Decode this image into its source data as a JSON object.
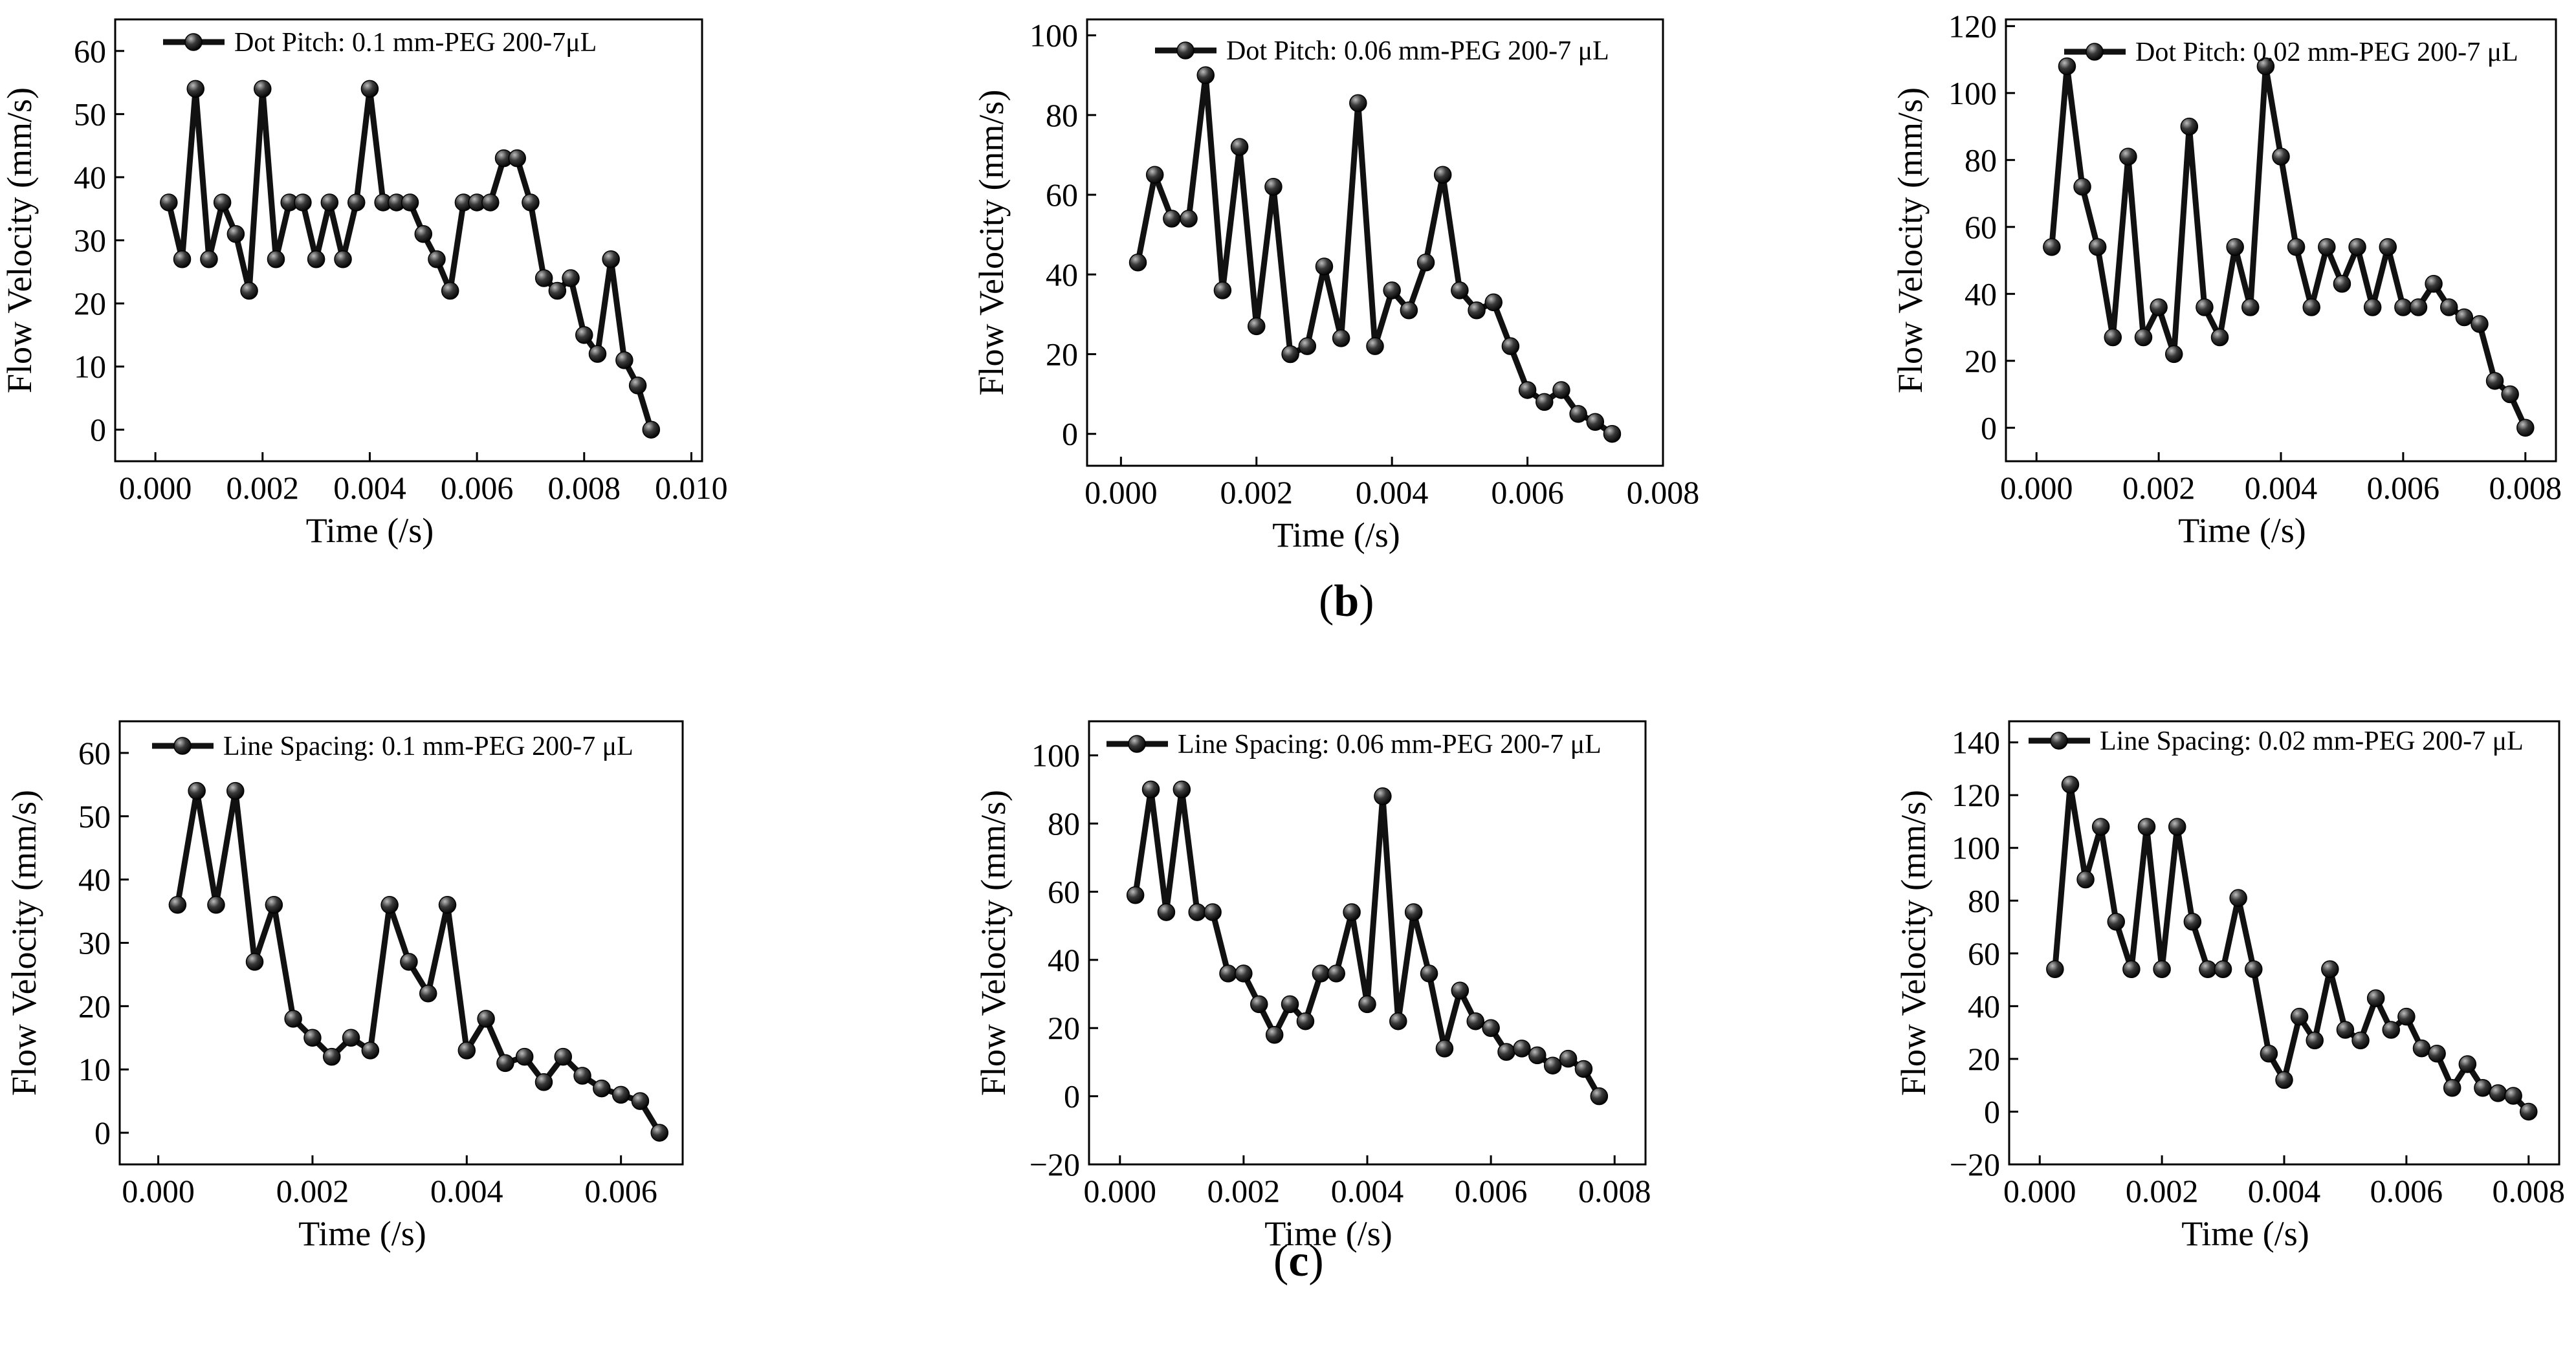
{
  "captions": {
    "b": "b",
    "c": "c"
  },
  "colors": {
    "line": "#111111",
    "marker": "#2a2a2a",
    "axis": "#000000",
    "background": "#ffffff"
  },
  "chart_data": [
    {
      "type": "line",
      "title": "",
      "xlabel": "Time (/s)",
      "ylabel": "Flow Velocity (mm/s)",
      "legend": "Dot Pitch: 0.1 mm-PEG 200-7μL",
      "legend_position": "top-left",
      "xlim": [
        -0.00075,
        0.0102
      ],
      "ylim": [
        -5,
        65
      ],
      "xticks": [
        0.0,
        0.002,
        0.004,
        0.006,
        0.008,
        0.01
      ],
      "xtick_labels": [
        "0.000",
        "0.002",
        "0.004",
        "0.006",
        "0.008",
        "0.010"
      ],
      "yticks": [
        0,
        10,
        20,
        30,
        40,
        50,
        60
      ],
      "ytick_labels": [
        "0",
        "10",
        "20",
        "30",
        "40",
        "50",
        "60"
      ],
      "x": [
        0.00025,
        0.0005,
        0.00075,
        0.001,
        0.00125,
        0.0015,
        0.00175,
        0.002,
        0.00225,
        0.0025,
        0.00275,
        0.003,
        0.00325,
        0.0035,
        0.00375,
        0.004,
        0.00425,
        0.0045,
        0.00475,
        0.005,
        0.00525,
        0.0055,
        0.00575,
        0.006,
        0.00625,
        0.0065,
        0.00675,
        0.007,
        0.00725,
        0.0075,
        0.00775,
        0.008,
        0.00825,
        0.0085,
        0.00875,
        0.009,
        0.00925
      ],
      "y": [
        36,
        27,
        54,
        27,
        36,
        31,
        22,
        54,
        27,
        36,
        36,
        27,
        36,
        27,
        36,
        54,
        36,
        36,
        36,
        31,
        27,
        22,
        36,
        36,
        36,
        43,
        43,
        36,
        24,
        22,
        24,
        15,
        12,
        27,
        11,
        7,
        0
      ]
    },
    {
      "type": "line",
      "title": "",
      "xlabel": "Time (/s)",
      "ylabel": "Flow Velocity (mm/s)",
      "legend": "Dot Pitch: 0.06 mm-PEG 200-7 μL",
      "legend_position": "top-right",
      "xlim": [
        -0.0005,
        0.008
      ],
      "ylim": [
        -8,
        104
      ],
      "xticks": [
        0.0,
        0.002,
        0.004,
        0.006,
        0.008
      ],
      "xtick_labels": [
        "0.000",
        "0.002",
        "0.004",
        "0.006",
        "0.008"
      ],
      "yticks": [
        0,
        20,
        40,
        60,
        80,
        100
      ],
      "ytick_labels": [
        "0",
        "20",
        "40",
        "60",
        "80",
        "100"
      ],
      "x": [
        0.00025,
        0.0005,
        0.00075,
        0.001,
        0.00125,
        0.0015,
        0.00175,
        0.002,
        0.00225,
        0.0025,
        0.00275,
        0.003,
        0.00325,
        0.0035,
        0.00375,
        0.004,
        0.00425,
        0.0045,
        0.00475,
        0.005,
        0.00525,
        0.0055,
        0.00575,
        0.006,
        0.00625,
        0.0065,
        0.00675,
        0.007,
        0.00725
      ],
      "y": [
        43,
        65,
        54,
        54,
        90,
        36,
        72,
        27,
        62,
        20,
        22,
        42,
        24,
        83,
        22,
        36,
        31,
        43,
        65,
        36,
        31,
        33,
        22,
        11,
        8,
        11,
        5,
        3,
        0
      ]
    },
    {
      "type": "line",
      "title": "",
      "xlabel": "Time (/s)",
      "ylabel": "Flow Velocity (mm/s)",
      "legend": "Dot Pitch:  0.02 mm-PEG 200-7 μL",
      "legend_position": "top-right",
      "xlim": [
        -0.0005,
        0.0085
      ],
      "ylim": [
        -10,
        122
      ],
      "xticks": [
        0.0,
        0.002,
        0.004,
        0.006,
        0.008
      ],
      "xtick_labels": [
        "0.000",
        "0.002",
        "0.004",
        "0.006",
        "0.008"
      ],
      "yticks": [
        0,
        20,
        40,
        60,
        80,
        100,
        120
      ],
      "ytick_labels": [
        "0",
        "20",
        "40",
        "60",
        "80",
        "100",
        "120"
      ],
      "x": [
        0.00025,
        0.0005,
        0.00075,
        0.001,
        0.00125,
        0.0015,
        0.00175,
        0.002,
        0.00225,
        0.0025,
        0.00275,
        0.003,
        0.00325,
        0.0035,
        0.00375,
        0.004,
        0.00425,
        0.0045,
        0.00475,
        0.005,
        0.00525,
        0.0055,
        0.00575,
        0.006,
        0.00625,
        0.0065,
        0.00675,
        0.007,
        0.00725,
        0.0075,
        0.00775,
        0.008
      ],
      "y": [
        54,
        108,
        72,
        54,
        27,
        81,
        27,
        36,
        22,
        90,
        36,
        27,
        54,
        36,
        108,
        81,
        54,
        36,
        54,
        43,
        54,
        36,
        54,
        36,
        36,
        43,
        36,
        33,
        31,
        14,
        10,
        0
      ]
    },
    {
      "type": "line",
      "title": "",
      "xlabel": "Time (/s)",
      "ylabel": "Flow Velocity (mm/s)",
      "legend": "Line Spacing: 0.1 mm-PEG 200-7 μL",
      "legend_position": "top-right",
      "xlim": [
        -0.0005,
        0.0068
      ],
      "ylim": [
        -5,
        65
      ],
      "xticks": [
        0.0,
        0.002,
        0.004,
        0.006
      ],
      "xtick_labels": [
        "0.000",
        "0.002",
        "0.004",
        "0.006"
      ],
      "yticks": [
        0,
        10,
        20,
        30,
        40,
        50,
        60
      ],
      "ytick_labels": [
        "0",
        "10",
        "20",
        "30",
        "40",
        "50",
        "60"
      ],
      "x": [
        0.00025,
        0.0005,
        0.00075,
        0.001,
        0.00125,
        0.0015,
        0.00175,
        0.002,
        0.00225,
        0.0025,
        0.00275,
        0.003,
        0.00325,
        0.0035,
        0.00375,
        0.004,
        0.00425,
        0.0045,
        0.00475,
        0.005,
        0.00525,
        0.0055,
        0.00575,
        0.006,
        0.00625,
        0.0065
      ],
      "y": [
        36,
        54,
        36,
        54,
        27,
        36,
        18,
        15,
        12,
        15,
        13,
        36,
        27,
        22,
        36,
        13,
        18,
        11,
        12,
        8,
        12,
        9,
        7,
        6,
        5,
        0
      ]
    },
    {
      "type": "line",
      "title": "",
      "xlabel": "Time (/s)",
      "ylabel": "Flow Velocity (mm/s)",
      "legend": "Line Spacing: 0.06 mm-PEG 200-7 μL",
      "legend_position": "top-right",
      "xlim": [
        -0.0005,
        0.0085
      ],
      "ylim": [
        -20,
        110
      ],
      "xticks": [
        0.0,
        0.002,
        0.004,
        0.006,
        0.008
      ],
      "xtick_labels": [
        "0.000",
        "0.002",
        "0.004",
        "0.006",
        "0.008"
      ],
      "yticks": [
        -20,
        0,
        20,
        40,
        60,
        80,
        100
      ],
      "ytick_labels": [
        "−20",
        "0",
        "20",
        "40",
        "60",
        "80",
        "100"
      ],
      "x": [
        0.00025,
        0.0005,
        0.00075,
        0.001,
        0.00125,
        0.0015,
        0.00175,
        0.002,
        0.00225,
        0.0025,
        0.00275,
        0.003,
        0.00325,
        0.0035,
        0.00375,
        0.004,
        0.00425,
        0.0045,
        0.00475,
        0.005,
        0.00525,
        0.0055,
        0.00575,
        0.006,
        0.00625,
        0.0065,
        0.00675,
        0.007,
        0.00725,
        0.0075,
        0.00775
      ],
      "y": [
        59,
        90,
        54,
        90,
        54,
        54,
        36,
        36,
        27,
        18,
        27,
        22,
        36,
        36,
        54,
        27,
        88,
        22,
        54,
        36,
        14,
        31,
        22,
        20,
        13,
        14,
        12,
        9,
        11,
        8,
        0
      ]
    },
    {
      "type": "line",
      "title": "",
      "xlabel": "Time (/s)",
      "ylabel": "Flow Velocity (mm/s)",
      "legend": "Line Spacing: 0.02 mm-PEG 200-7 μL",
      "legend_position": "top-right",
      "xlim": [
        -0.0005,
        0.0085
      ],
      "ylim": [
        -20,
        148
      ],
      "xticks": [
        0.0,
        0.002,
        0.004,
        0.006,
        0.008
      ],
      "xtick_labels": [
        "0.000",
        "0.002",
        "0.004",
        "0.006",
        "0.008"
      ],
      "yticks": [
        -20,
        0,
        20,
        40,
        60,
        80,
        100,
        120,
        140
      ],
      "ytick_labels": [
        "−20",
        "0",
        "20",
        "40",
        "60",
        "80",
        "100",
        "120",
        "140"
      ],
      "x": [
        0.00025,
        0.0005,
        0.00075,
        0.001,
        0.00125,
        0.0015,
        0.00175,
        0.002,
        0.00225,
        0.0025,
        0.00275,
        0.003,
        0.00325,
        0.0035,
        0.00375,
        0.004,
        0.00425,
        0.0045,
        0.00475,
        0.005,
        0.00525,
        0.0055,
        0.00575,
        0.006,
        0.00625,
        0.0065,
        0.00675,
        0.007,
        0.00725,
        0.0075,
        0.00775,
        0.008
      ],
      "y": [
        54,
        124,
        88,
        108,
        72,
        54,
        108,
        54,
        108,
        72,
        54,
        54,
        81,
        54,
        22,
        12,
        36,
        27,
        54,
        31,
        27,
        43,
        31,
        36,
        24,
        22,
        9,
        18,
        9,
        7,
        6,
        0
      ]
    }
  ]
}
